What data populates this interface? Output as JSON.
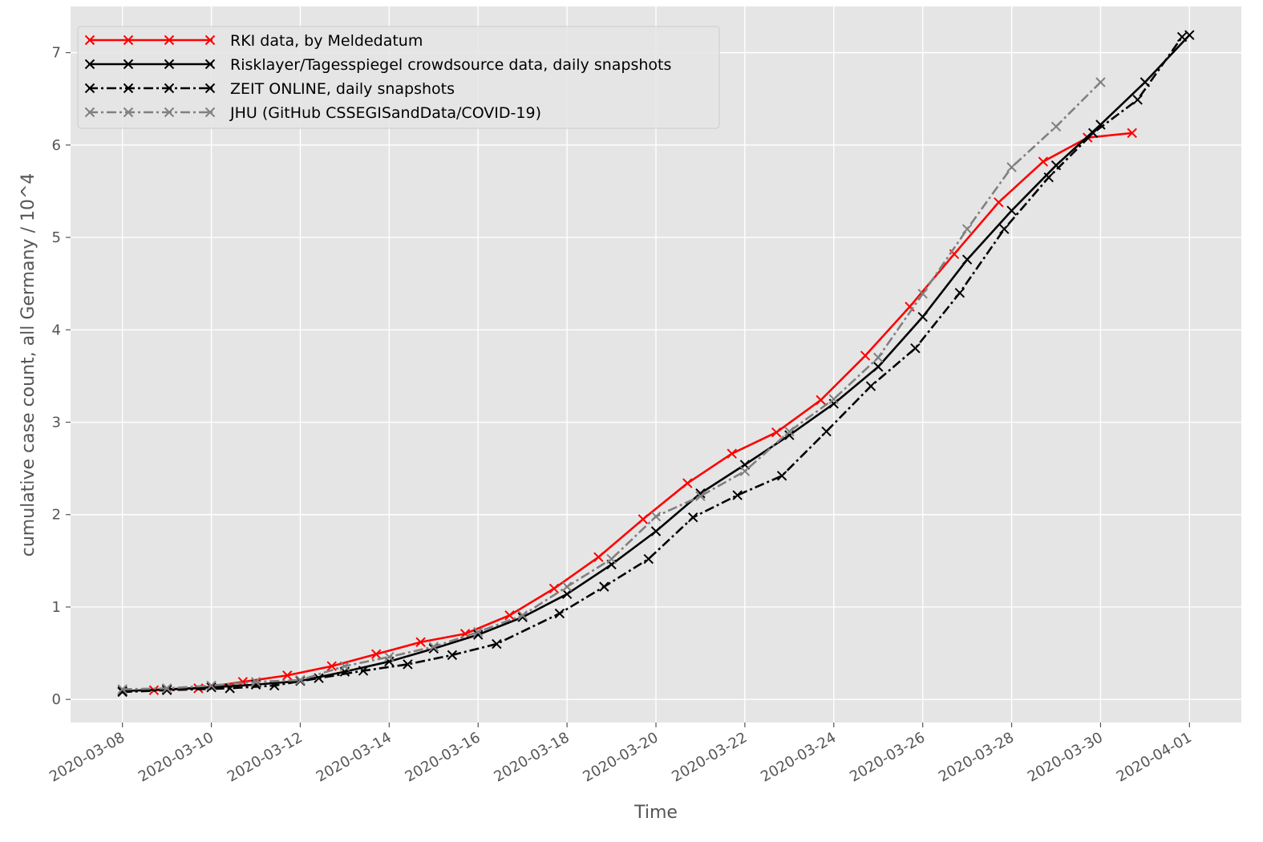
{
  "chart_data": {
    "type": "line",
    "title": "",
    "xlabel": "Time",
    "ylabel": "cumulative case count, all Germany / 10^4",
    "xlim": [
      "2020-03-06T20:00",
      "2020-04-02T04:00"
    ],
    "ylim": [
      -0.25,
      7.5
    ],
    "x_ticks": [
      "2020-03-08",
      "2020-03-10",
      "2020-03-12",
      "2020-03-14",
      "2020-03-16",
      "2020-03-18",
      "2020-03-20",
      "2020-03-22",
      "2020-03-24",
      "2020-03-26",
      "2020-03-28",
      "2020-03-30",
      "2020-04-01"
    ],
    "y_ticks": [
      0,
      1,
      2,
      3,
      4,
      5,
      6,
      7
    ],
    "grid": true,
    "legend_position": "top-left",
    "background": "#e5e5e5",
    "series": [
      {
        "name": "RKI data, by Meldedatum",
        "color": "#ff0000",
        "linestyle": "solid",
        "marker": "x",
        "points": [
          [
            "2020-03-08T17:00",
            0.1
          ],
          [
            "2020-03-09T17:00",
            0.12
          ],
          [
            "2020-03-10T17:00",
            0.19
          ],
          [
            "2020-03-11T17:00",
            0.26
          ],
          [
            "2020-03-12T17:00",
            0.36
          ],
          [
            "2020-03-13T17:00",
            0.49
          ],
          [
            "2020-03-14T17:00",
            0.62
          ],
          [
            "2020-03-15T17:00",
            0.71
          ],
          [
            "2020-03-16T17:00",
            0.91
          ],
          [
            "2020-03-17T17:00",
            1.2
          ],
          [
            "2020-03-18T17:00",
            1.54
          ],
          [
            "2020-03-19T17:00",
            1.95
          ],
          [
            "2020-03-20T17:00",
            2.34
          ],
          [
            "2020-03-21T17:00",
            2.66
          ],
          [
            "2020-03-22T17:00",
            2.89
          ],
          [
            "2020-03-23T17:00",
            3.24
          ],
          [
            "2020-03-24T17:00",
            3.72
          ],
          [
            "2020-03-25T17:00",
            4.25
          ],
          [
            "2020-03-26T17:00",
            4.82
          ],
          [
            "2020-03-27T17:00",
            5.38
          ],
          [
            "2020-03-28T17:00",
            5.82
          ],
          [
            "2020-03-29T17:00",
            6.08
          ],
          [
            "2020-03-30T17:00",
            6.13
          ]
        ]
      },
      {
        "name": "Risklayer/Tagesspiegel crowdsource data, daily snapshots",
        "color": "#000000",
        "linestyle": "solid",
        "marker": "x",
        "points": [
          [
            "2020-03-08T00:00",
            0.09
          ],
          [
            "2020-03-09T00:00",
            0.11
          ],
          [
            "2020-03-10T00:00",
            0.13
          ],
          [
            "2020-03-11T00:00",
            0.16
          ],
          [
            "2020-03-12T00:00",
            0.2
          ],
          [
            "2020-03-13T00:00",
            0.3
          ],
          [
            "2020-03-14T00:00",
            0.41
          ],
          [
            "2020-03-15T00:00",
            0.55
          ],
          [
            "2020-03-16T00:00",
            0.7
          ],
          [
            "2020-03-17T00:00",
            0.89
          ],
          [
            "2020-03-18T00:00",
            1.14
          ],
          [
            "2020-03-19T00:00",
            1.46
          ],
          [
            "2020-03-20T00:00",
            1.82
          ],
          [
            "2020-03-21T00:00",
            2.23
          ],
          [
            "2020-03-22T00:00",
            2.54
          ],
          [
            "2020-03-23T00:00",
            2.86
          ],
          [
            "2020-03-24T00:00",
            3.2
          ],
          [
            "2020-03-25T00:00",
            3.6
          ],
          [
            "2020-03-26T00:00",
            4.14
          ],
          [
            "2020-03-27T00:00",
            4.76
          ],
          [
            "2020-03-28T00:00",
            5.29
          ],
          [
            "2020-03-29T00:00",
            5.78
          ],
          [
            "2020-03-30T00:00",
            6.22
          ],
          [
            "2020-03-31T00:00",
            6.68
          ],
          [
            "2020-04-01T00:00",
            7.19
          ]
        ]
      },
      {
        "name": "ZEIT ONLINE, daily snapshots",
        "color": "#000000",
        "linestyle": "dashdot",
        "marker": "x",
        "points": [
          [
            "2020-03-08T00:00",
            0.08
          ],
          [
            "2020-03-09T00:00",
            0.1
          ],
          [
            "2020-03-10T10:00",
            0.12
          ],
          [
            "2020-03-11T10:00",
            0.15
          ],
          [
            "2020-03-12T10:00",
            0.23
          ],
          [
            "2020-03-13T10:00",
            0.31
          ],
          [
            "2020-03-14T10:00",
            0.38
          ],
          [
            "2020-03-15T10:00",
            0.48
          ],
          [
            "2020-03-16T10:00",
            0.6
          ],
          [
            "2020-03-17T20:00",
            0.93
          ],
          [
            "2020-03-18T20:00",
            1.22
          ],
          [
            "2020-03-19T20:00",
            1.52
          ],
          [
            "2020-03-20T20:00",
            1.97
          ],
          [
            "2020-03-21T20:00",
            2.21
          ],
          [
            "2020-03-22T20:00",
            2.42
          ],
          [
            "2020-03-23T20:00",
            2.9
          ],
          [
            "2020-03-24T20:00",
            3.39
          ],
          [
            "2020-03-25T20:00",
            3.8
          ],
          [
            "2020-03-26T20:00",
            4.4
          ],
          [
            "2020-03-27T20:00",
            5.09
          ],
          [
            "2020-03-28T20:00",
            5.65
          ],
          [
            "2020-03-29T20:00",
            6.13
          ],
          [
            "2020-03-30T20:00",
            6.49
          ],
          [
            "2020-03-31T20:00",
            7.17
          ]
        ]
      },
      {
        "name": "JHU (GitHub CSSEGISandData/COVID-19)",
        "color": "#808080",
        "linestyle": "dashdot",
        "marker": "x",
        "points": [
          [
            "2020-03-08T00:00",
            0.11
          ],
          [
            "2020-03-09T00:00",
            0.12
          ],
          [
            "2020-03-10T00:00",
            0.15
          ],
          [
            "2020-03-11T00:00",
            0.19
          ],
          [
            "2020-03-12T00:00",
            0.21
          ],
          [
            "2020-03-13T00:00",
            0.36
          ],
          [
            "2020-03-14T00:00",
            0.46
          ],
          [
            "2020-03-15T00:00",
            0.57
          ],
          [
            "2020-03-16T00:00",
            0.73
          ],
          [
            "2020-03-17T00:00",
            0.91
          ],
          [
            "2020-03-18T00:00",
            1.22
          ],
          [
            "2020-03-19T00:00",
            1.52
          ],
          [
            "2020-03-20T00:00",
            1.98
          ],
          [
            "2020-03-21T00:00",
            2.2
          ],
          [
            "2020-03-22T00:00",
            2.47
          ],
          [
            "2020-03-23T00:00",
            2.9
          ],
          [
            "2020-03-24T00:00",
            3.25
          ],
          [
            "2020-03-25T00:00",
            3.7
          ],
          [
            "2020-03-26T00:00",
            4.39
          ],
          [
            "2020-03-27T00:00",
            5.09
          ],
          [
            "2020-03-28T00:00",
            5.76
          ],
          [
            "2020-03-29T00:00",
            6.2
          ],
          [
            "2020-03-30T00:00",
            6.68
          ]
        ]
      }
    ]
  }
}
